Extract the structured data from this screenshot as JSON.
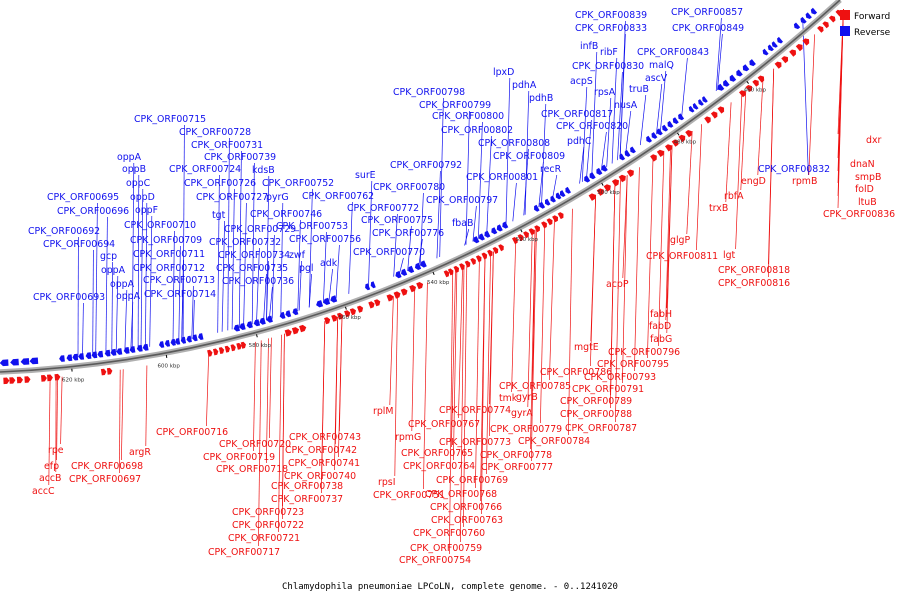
{
  "caption": "Chlamydophila pneumoniae LPCoLN, complete genome. - 0..1241020",
  "legend": [
    {
      "label": "Forward",
      "color": "#ee1111"
    },
    {
      "label": "Reverse",
      "color": "#1111ee"
    }
  ],
  "colors": {
    "forward": "#ee1111",
    "reverse": "#1111ee",
    "backbone": "#808080"
  },
  "ticks": [
    "460 kbp",
    "480 kbp",
    "500 kbp",
    "520 kbp",
    "540 kbp",
    "560 kbp",
    "580 kbp",
    "600 kbp",
    "620 kbp"
  ],
  "reverse_labels": [
    "CPK_ORF00839",
    "CPK_ORF00857",
    "CPK_ORF00833",
    "CPK_ORF00849",
    "infB",
    "ribF",
    "CPK_ORF00843",
    "lpxD",
    "CPK_ORF00830",
    "malQ",
    "pdhA",
    "acpS",
    "rpsA",
    "truB",
    "ascV",
    "pdhB",
    "CPK_ORF00798",
    "nusA",
    "CPK_ORF00799",
    "CPK_ORF00817",
    "CPK_ORF00800",
    "CPK_ORF00820",
    "CPK_ORF00715",
    "CPK_ORF00802",
    "CPK_ORF00728",
    "pdhC",
    "CPK_ORF00808",
    "CPK_ORF00731",
    "CPK_ORF00809",
    "CPK_ORF00739",
    "oppA",
    "kdsB",
    "recR",
    "CPK_ORF00792",
    "CPK_ORF00832",
    "oppB",
    "CPK_ORF00724",
    "surE",
    "CPK_ORF00801",
    "oppC",
    "CPK_ORF00726",
    "CPK_ORF00752",
    "CPK_ORF00780",
    "CPK_ORF00695",
    "oppD",
    "CPK_ORF00727",
    "pyrG",
    "CPK_ORF00762",
    "CPK_ORF00797",
    "CPK_ORF00696",
    "oppF",
    "tgt",
    "CPK_ORF00746",
    "CPK_ORF00772",
    "CPK_ORF00710",
    "CPK_ORF00729",
    "CPK_ORF00753",
    "CPK_ORF00775",
    "CPK_ORF00692",
    "fbaB",
    "CPK_ORF00709",
    "CPK_ORF00732",
    "CPK_ORF00756",
    "CPK_ORF00776",
    "CPK_ORF00694",
    "gcp",
    "CPK_ORF00711",
    "CPK_ORF00734",
    "zwf",
    "adk",
    "CPK_ORF00770",
    "oppA",
    "CPK_ORF00712",
    "CPK_ORF00735",
    "pgl",
    "oppA",
    "CPK_ORF00713",
    "CPK_ORF00736",
    "CPK_ORF00693",
    "oppA",
    "CPK_ORF00714"
  ],
  "forward_labels": [
    "dxr",
    "dnaN",
    "smpB",
    "rpmB",
    "folD",
    "ltuB",
    "CPK_ORF00836",
    "engD",
    "rbfA",
    "trxB",
    "glgP",
    "CPK_ORF00811",
    "lgt",
    "CPK_ORF00818",
    "CPK_ORF00816",
    "acpP",
    "fabH",
    "fabD",
    "fabG",
    "mgtE",
    "CPK_ORF00796",
    "CPK_ORF00795",
    "CPK_ORF00786",
    "CPK_ORF00793",
    "CPK_ORF00785",
    "CPK_ORF00791",
    "tmk",
    "gyrB",
    "CPK_ORF00789",
    "rplM",
    "CPK_ORF00774",
    "gyrA",
    "CPK_ORF00788",
    "CPK_ORF00767",
    "CPK_ORF00779",
    "CPK_ORF00787",
    "CPK_ORF00716",
    "CPK_ORF00743",
    "rpmG",
    "CPK_ORF00773",
    "CPK_ORF00784",
    "CPK_ORF00720",
    "CPK_ORF00742",
    "CPK_ORF00765",
    "CPK_ORF00778",
    "rpe",
    "CPK_ORF00719",
    "CPK_ORF00741",
    "CPK_ORF00764",
    "CPK_ORF00777",
    "argR",
    "efp",
    "CPK_ORF00698",
    "CPK_ORF00718",
    "CPK_ORF00740",
    "accB",
    "CPK_ORF00697",
    "rpsI",
    "CPK_ORF00769",
    "accC",
    "CPK_ORF00738",
    "CPK_ORF00751",
    "CPK_ORF00768",
    "CPK_ORF00737",
    "CPK_ORF00766",
    "CPK_ORF00723",
    "CPK_ORF00763",
    "CPK_ORF00722",
    "CPK_ORF00760",
    "CPK_ORF00721",
    "CPK_ORF00759",
    "CPK_ORF00717",
    "CPK_ORF00754"
  ]
}
